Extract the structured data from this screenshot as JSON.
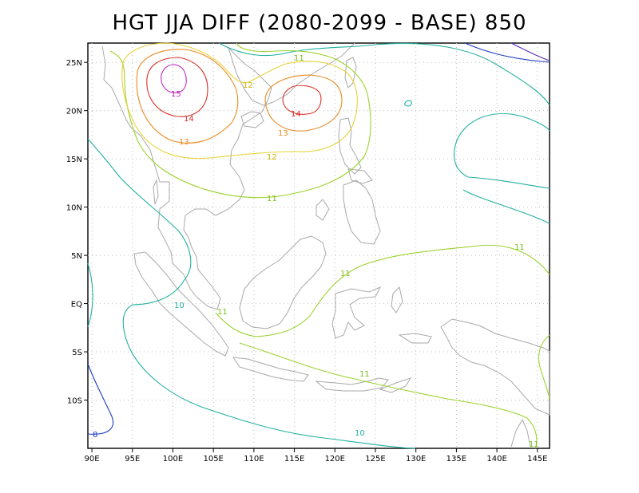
{
  "title": "HGT JJA DIFF (2080-2099 - BASE) 850",
  "axes": {
    "lon_ticks": [
      "90E",
      "95E",
      "100E",
      "105E",
      "110E",
      "115E",
      "120E",
      "125E",
      "130E",
      "135E",
      "140E",
      "145E"
    ],
    "lat_ticks": [
      "25N",
      "20N",
      "15N",
      "10N",
      "5N",
      "EQ",
      "5S",
      "10S"
    ]
  },
  "chart_data": {
    "type": "contour-map",
    "title": "HGT JJA DIFF (2080-2099 - BASE) 850",
    "lon_range": [
      89.5,
      146.5
    ],
    "lat_range": [
      -15,
      27
    ],
    "grid": true,
    "contours": [
      {
        "level": 8,
        "color": "#1f3fbf",
        "label": "8"
      },
      {
        "level": 10,
        "color": "#22b0a0",
        "label": "10"
      },
      {
        "level": 11,
        "color": "#9bd32e",
        "label": "11"
      },
      {
        "level": 12,
        "color": "#e8d23a",
        "label": "12"
      },
      {
        "level": 13,
        "color": "#e88a20",
        "label": "13"
      },
      {
        "level": 14,
        "color": "#d8342a",
        "label": "14"
      },
      {
        "level": 15,
        "color": "#c02ec0",
        "label": "15"
      }
    ]
  }
}
